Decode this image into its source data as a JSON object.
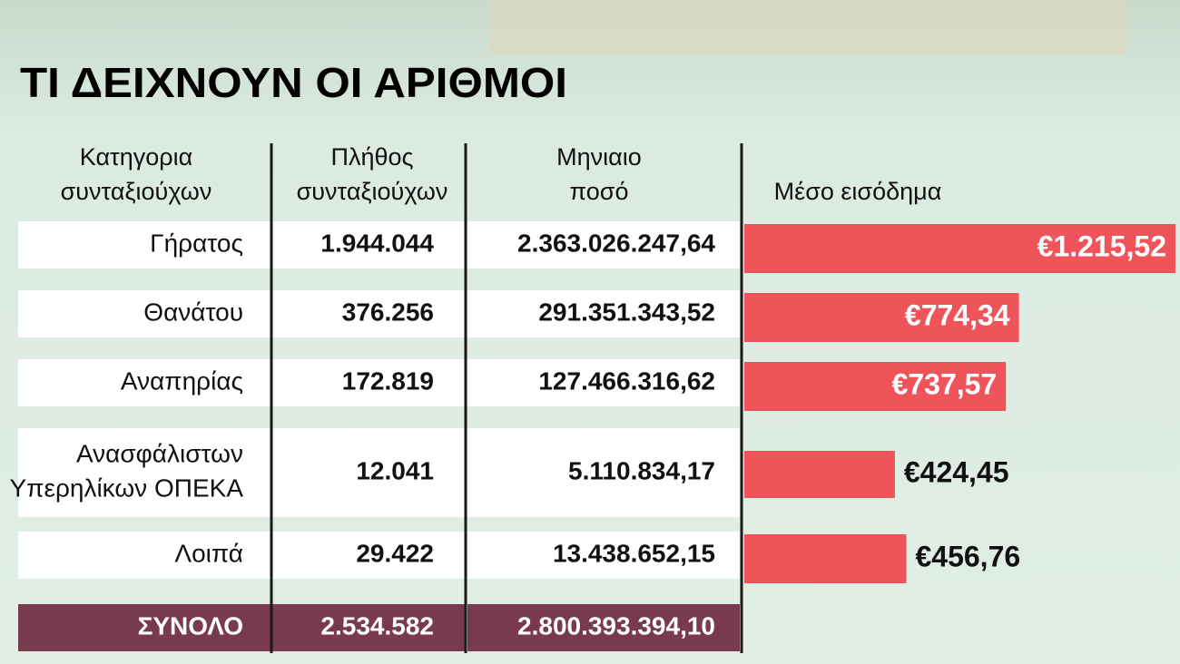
{
  "title": "ΤΙ ΔΕΙΧΝΟΥΝ ΟΙ ΑΡΙΘΜΟΙ",
  "table": {
    "headers": [
      [
        "Κατηγορια",
        "συνταξιούχων"
      ],
      [
        "Πλήθος",
        "συνταξιούχων"
      ],
      [
        "Μηνιαιο",
        "ποσό"
      ],
      [
        "Μέσο εισόδημα"
      ]
    ],
    "rows": [
      {
        "category": [
          "Γήρατος"
        ],
        "count": "1.944.044",
        "amount": "2.363.026.247,64",
        "income": 1215.52,
        "income_label": "€1.215,52"
      },
      {
        "category": [
          "Θανάτου"
        ],
        "count": "376.256",
        "amount": "291.351.343,52",
        "income": 774.34,
        "income_label": "€774,34"
      },
      {
        "category": [
          "Αναπηρίας"
        ],
        "count": "172.819",
        "amount": "127.466.316,62",
        "income": 737.57,
        "income_label": "€737,57"
      },
      {
        "category": [
          "Ανασφάλιστων",
          "Υπερηλίκων ΟΠΕΚΑ"
        ],
        "count": "12.041",
        "amount": "5.110.834,17",
        "income": 424.45,
        "income_label": "€424,45"
      },
      {
        "category": [
          "Λοιπά"
        ],
        "count": "29.422",
        "amount": "13.438.652,15",
        "income": 456.76,
        "income_label": "€456,76"
      }
    ],
    "total": {
      "label": "ΣΥΝΟΛΟ",
      "count": "2.534.582",
      "amount": "2.800.393.394,10"
    },
    "bar_color": "#ee545a"
  }
}
